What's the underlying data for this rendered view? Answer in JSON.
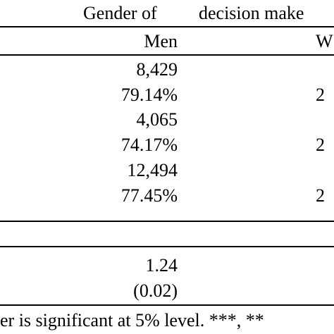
{
  "header": {
    "group_label_left": "Gender of",
    "group_label_right": "decision make",
    "col_men": "Men",
    "col_women_partial": "W"
  },
  "rows": [
    {
      "men": "8,429",
      "women_partial": ""
    },
    {
      "men": "79.14%",
      "women_partial": "2"
    },
    {
      "men": "4,065",
      "women_partial": ""
    },
    {
      "men": "74.17%",
      "women_partial": "2"
    },
    {
      "men": "12,494",
      "women_partial": ""
    },
    {
      "men": "77.45%",
      "women_partial": "2"
    }
  ],
  "test": {
    "stat": "1.24",
    "pvalue": "(0.02)"
  },
  "footnote": "er is significant at 5% level. ***, **"
}
